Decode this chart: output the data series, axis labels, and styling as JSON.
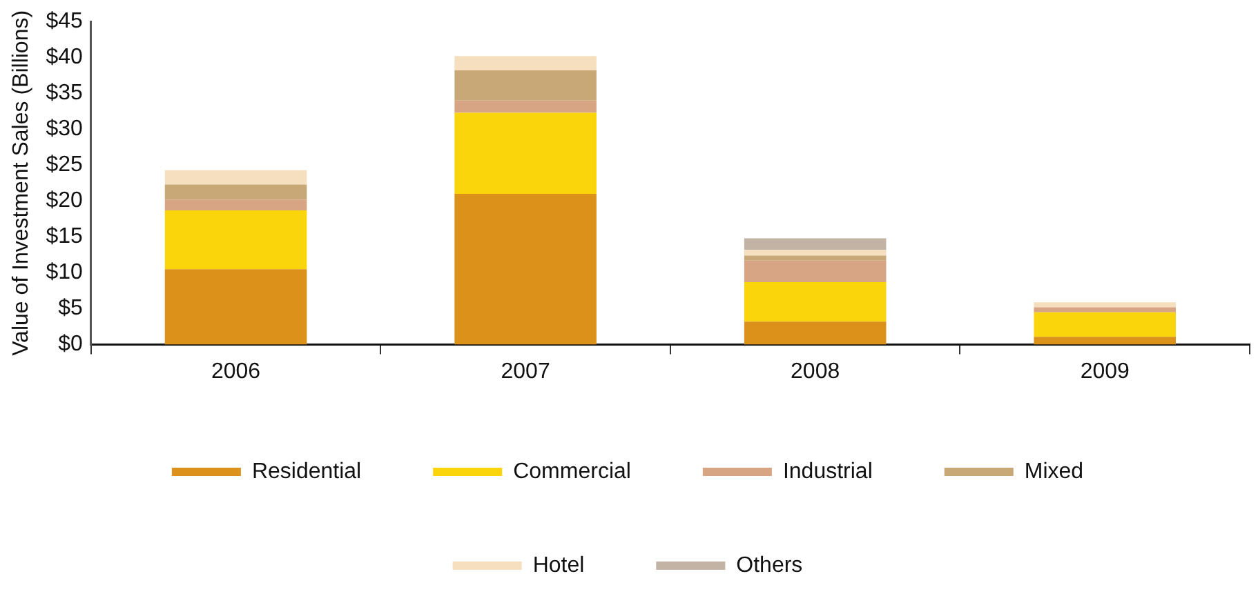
{
  "chart_data": {
    "type": "bar",
    "stacked": true,
    "ylabel": "Value of Investment Sales (Billions)",
    "categories": [
      "2006",
      "2007",
      "2008",
      "2009"
    ],
    "series": [
      {
        "name": "Residential",
        "color": "#dc921a",
        "values": [
          10.5,
          21.0,
          3.2,
          1.1
        ]
      },
      {
        "name": "Commercial",
        "color": "#fbd50b",
        "values": [
          8.2,
          11.3,
          5.5,
          3.4
        ]
      },
      {
        "name": "Industrial",
        "color": "#d7a484",
        "values": [
          1.5,
          1.7,
          3.0,
          0.7
        ]
      },
      {
        "name": "Mixed",
        "color": "#c8a877",
        "values": [
          2.1,
          4.2,
          0.7,
          0
        ]
      },
      {
        "name": "Hotel",
        "color": "#f5dfbf",
        "values": [
          2.0,
          2.0,
          0.8,
          0.7
        ]
      },
      {
        "name": "Others",
        "color": "#c2b3a5",
        "values": [
          0,
          0,
          1.6,
          0
        ]
      }
    ],
    "ylim": [
      0,
      45
    ],
    "yticks": [
      {
        "value": 0,
        "label": "$0"
      },
      {
        "value": 5,
        "label": "$5"
      },
      {
        "value": 10,
        "label": "$10"
      },
      {
        "value": 15,
        "label": "$15"
      },
      {
        "value": 20,
        "label": "$20"
      },
      {
        "value": 25,
        "label": "$25"
      },
      {
        "value": 30,
        "label": "$30"
      },
      {
        "value": 35,
        "label": "$35"
      },
      {
        "value": 40,
        "label": "$40"
      },
      {
        "value": 45,
        "label": "$45"
      }
    ],
    "grid": false,
    "legend": "bottom"
  }
}
